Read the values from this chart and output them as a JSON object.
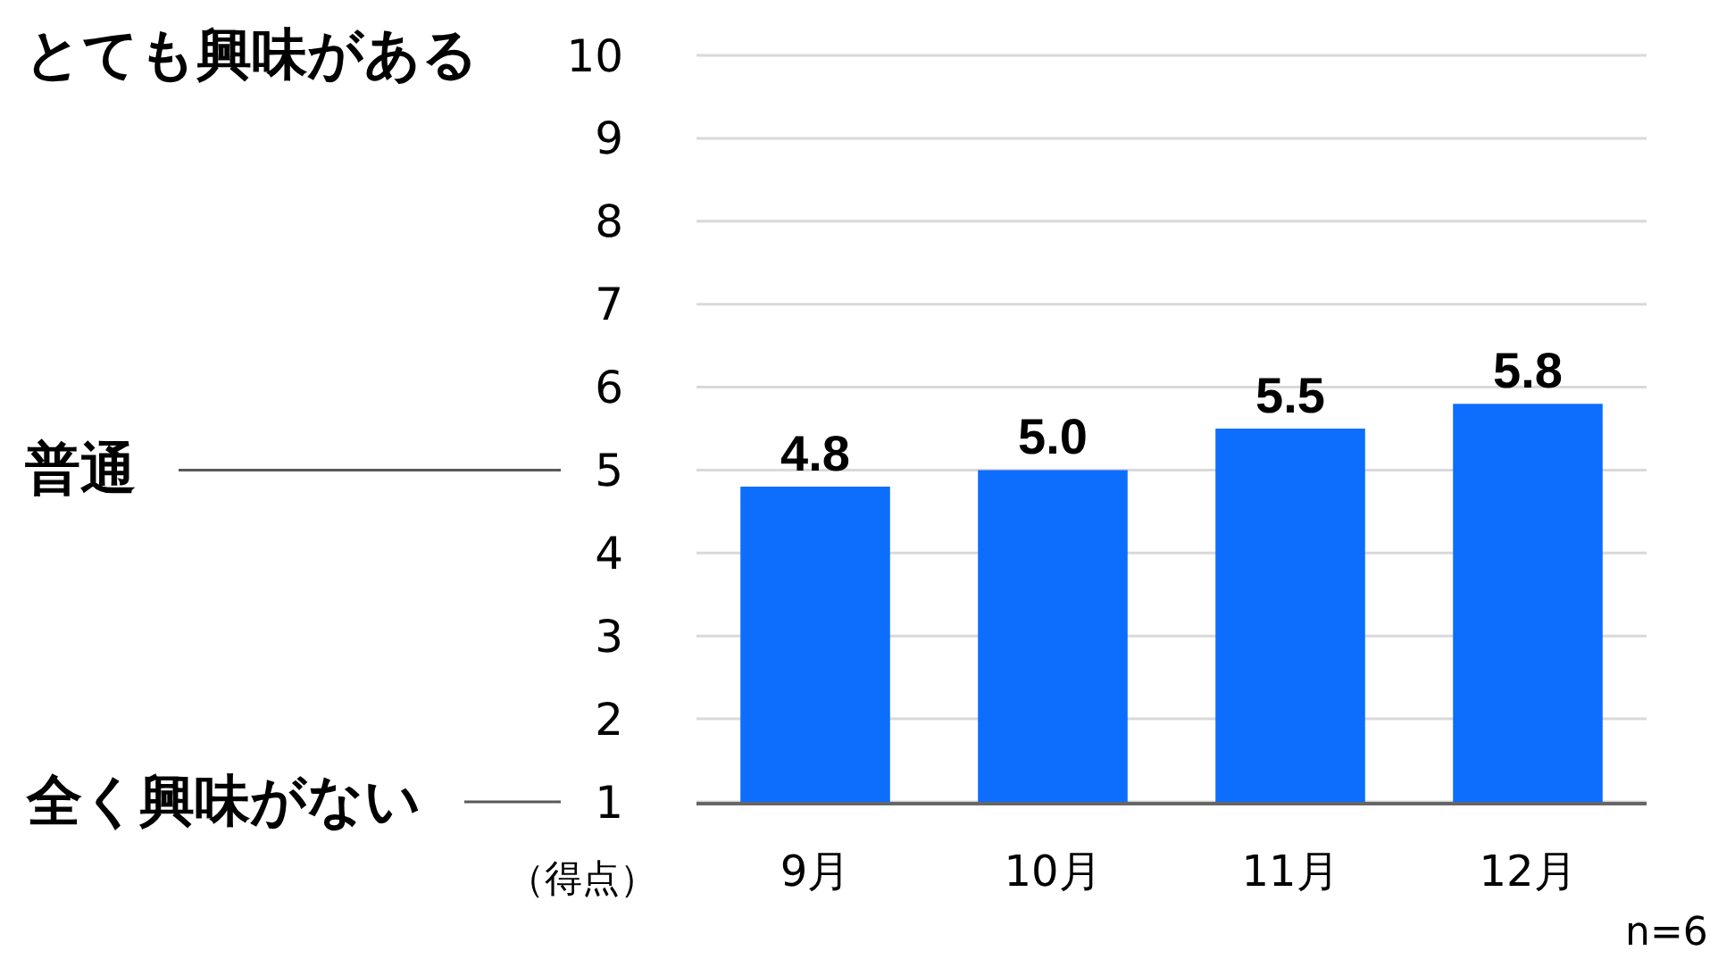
{
  "chart_data": {
    "type": "bar",
    "categories": [
      "9月",
      "10月",
      "11月",
      "12月"
    ],
    "values": [
      4.8,
      5.0,
      5.5,
      5.8
    ],
    "color": "#0d6efd",
    "value_labels": [
      "4.8",
      "5.0",
      "5.5",
      "5.8"
    ],
    "ylim": [
      1,
      10
    ],
    "yticks": [
      1,
      2,
      3,
      4,
      5,
      6,
      7,
      8,
      9,
      10
    ],
    "grid": "y",
    "ylabel": "（得点）",
    "ref_lines": [
      {
        "axis": "y",
        "value": 5,
        "label": "普通",
        "color": "#595959"
      },
      {
        "axis": "y",
        "value": 1,
        "label": "全く興味がない",
        "color": "#595959"
      }
    ],
    "annotations": [
      "とても興味がある",
      "n=6"
    ]
  }
}
